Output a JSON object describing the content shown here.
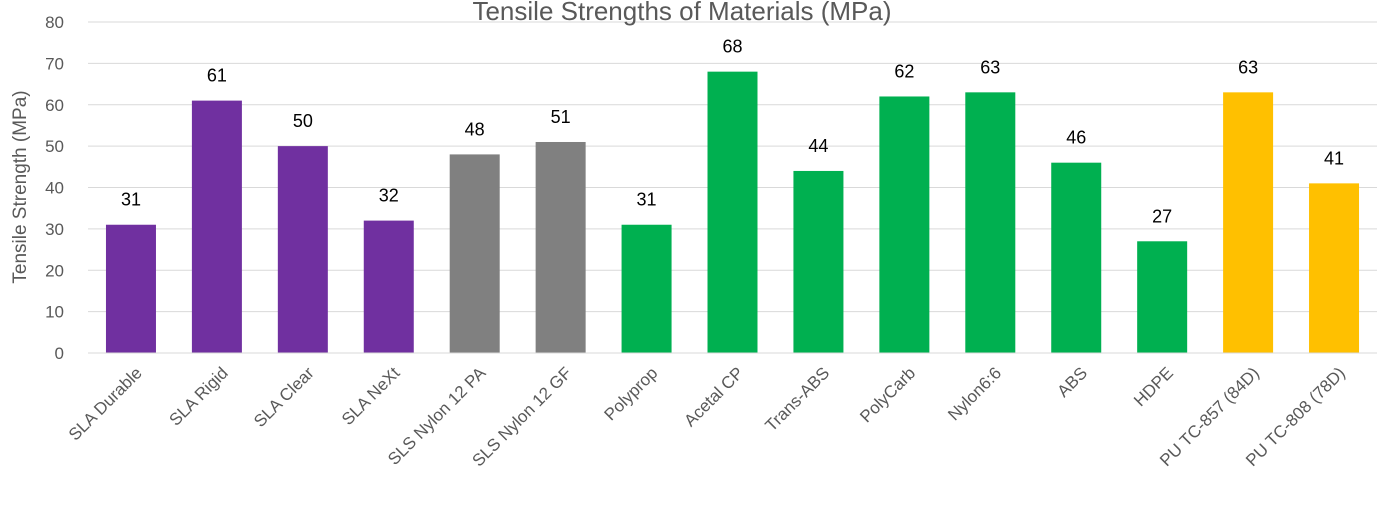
{
  "chart_data": {
    "type": "bar",
    "title": "Tensile Strengths of Materials (MPa)",
    "xlabel": "",
    "ylabel": "Tensile Strength (MPa)",
    "ylim": [
      0,
      80
    ],
    "yticks": [
      "0",
      "10",
      "20",
      "30",
      "40",
      "50",
      "60",
      "70",
      "80"
    ],
    "grid": true,
    "legend": "none",
    "categories": [
      "SLA Durable",
      "SLA Rigid",
      "SLA Clear",
      "SLA NeXt",
      "SLS Nylon 12 PA",
      "SLS Nylon 12 GF",
      "Polyprop",
      "Acetal CP",
      "Trans-ABS",
      "PolyCarb",
      "Nylon6:6",
      "ABS",
      "HDPE",
      "PU TC-857 (84D)",
      "PU TC-808 (78D)"
    ],
    "values": [
      31,
      61,
      50,
      32,
      48,
      51,
      31,
      68,
      44,
      62,
      63,
      46,
      27,
      63,
      41
    ],
    "bar_colors": [
      "#7030A0",
      "#7030A0",
      "#7030A0",
      "#7030A0",
      "#808080",
      "#808080",
      "#00B050",
      "#00B050",
      "#00B050",
      "#00B050",
      "#00B050",
      "#00B050",
      "#00B050",
      "#FFC000",
      "#FFC000"
    ],
    "gridline_color": "#D9D9D9"
  }
}
